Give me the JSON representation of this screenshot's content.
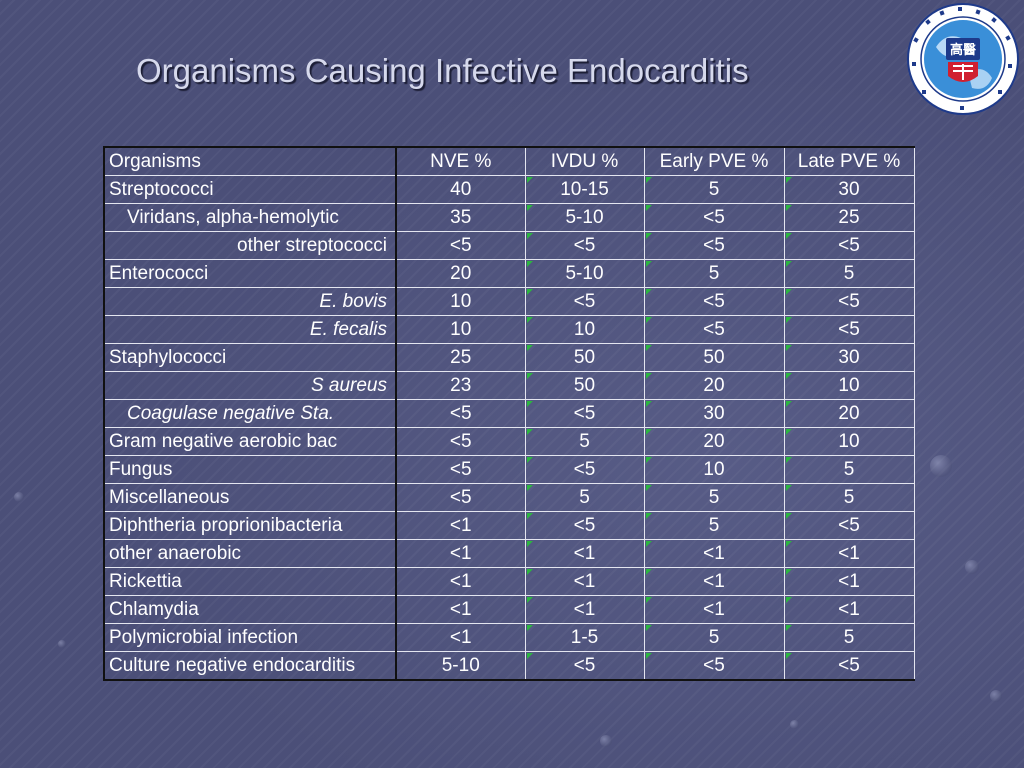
{
  "slide": {
    "title": "Organisms Causing Infective Endocarditis",
    "logo": {
      "name": "medical-university-seal",
      "text": "高醫"
    }
  },
  "table": {
    "columns": [
      "Organisms",
      "NVE %",
      "IVDU %",
      "Early PVE %",
      "Late PVE %"
    ],
    "rows": [
      {
        "organism": "Streptococci",
        "style": "lead",
        "values": [
          "40",
          "10-15",
          "5",
          "30"
        ]
      },
      {
        "organism": "Viridans, alpha-hemolytic",
        "style": "indent",
        "values": [
          "35",
          "5-10",
          "<5",
          "25"
        ]
      },
      {
        "organism": "other streptococci",
        "style": "right",
        "values": [
          "<5",
          "<5",
          "<5",
          "<5"
        ]
      },
      {
        "organism": "Enterococci",
        "style": "lead",
        "values": [
          "20",
          "5-10",
          "5",
          "5"
        ]
      },
      {
        "organism": "E. bovis",
        "style": "right-italic",
        "values": [
          "10",
          "<5",
          "<5",
          "<5"
        ]
      },
      {
        "organism": "E. fecalis",
        "style": "right-italic",
        "values": [
          "10",
          "10",
          "<5",
          "<5"
        ]
      },
      {
        "organism": "Staphylococci",
        "style": "lead",
        "values": [
          "25",
          "50",
          "50",
          "30"
        ]
      },
      {
        "organism": "S aureus",
        "style": "right-italic",
        "values": [
          "23",
          "50",
          "20",
          "10"
        ]
      },
      {
        "organism": "Coagulase negative Sta.",
        "style": "indent-italic",
        "values": [
          "<5",
          "<5",
          "30",
          "20"
        ]
      },
      {
        "organism": "Gram negative aerobic bac",
        "style": "lead",
        "values": [
          "<5",
          "5",
          "20",
          "10"
        ]
      },
      {
        "organism": "Fungus",
        "style": "lead",
        "values": [
          "<5",
          "<5",
          "10",
          "5"
        ]
      },
      {
        "organism": "Miscellaneous",
        "style": "lead",
        "values": [
          "<5",
          "5",
          "5",
          "5"
        ]
      },
      {
        "organism": "Diphtheria proprionibacteria",
        "style": "lead",
        "values": [
          "<1",
          "<5",
          "5",
          "<5"
        ]
      },
      {
        "organism": "other anaerobic",
        "style": "lead",
        "values": [
          "<1",
          "<1",
          "<1",
          "<1"
        ]
      },
      {
        "organism": "Rickettia",
        "style": "lead",
        "values": [
          "<1",
          "<1",
          "<1",
          "<1"
        ]
      },
      {
        "organism": "Chlamydia",
        "style": "lead",
        "values": [
          "<1",
          "<1",
          "<1",
          "<1"
        ]
      },
      {
        "organism": "Polymicrobial infection",
        "style": "lead",
        "values": [
          "<1",
          "1-5",
          "5",
          "5"
        ]
      },
      {
        "organism": "Culture negative endocarditis",
        "style": "lead",
        "values": [
          "5-10",
          "<5",
          "<5",
          "<5"
        ]
      }
    ]
  },
  "colors": {
    "background": "#4b4f78",
    "title": "#d6d9ec",
    "text": "#ffffff",
    "marker": "#2bb640"
  }
}
